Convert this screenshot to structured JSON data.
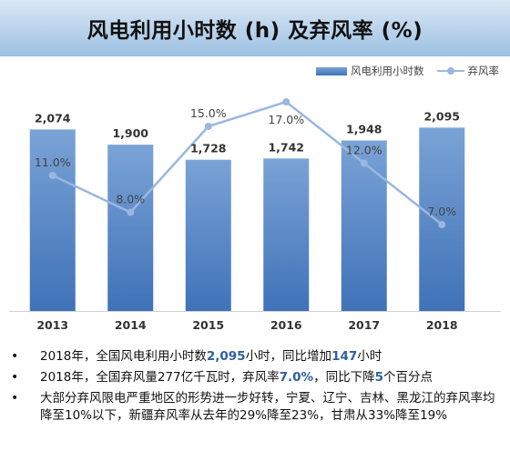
{
  "title": "风电利用小时数 (h) 及弃风率 (%)",
  "legend": {
    "hours_label": "风电利用小时数",
    "rate_label": "弃风率"
  },
  "chart_data": {
    "type": "bar",
    "categories": [
      "2013",
      "2014",
      "2015",
      "2016",
      "2017",
      "2018"
    ],
    "series": [
      {
        "name": "风电利用小时数",
        "type": "bar",
        "values": [
          2074,
          1900,
          1728,
          1742,
          1948,
          2095
        ],
        "labels": [
          "2,074",
          "1,900",
          "1,728",
          "1,742",
          "1,948",
          "2,095"
        ],
        "color": "#4a7fc1"
      },
      {
        "name": "弃风率",
        "type": "line",
        "values": [
          11.0,
          8.0,
          15.0,
          17.0,
          12.0,
          7.0
        ],
        "labels": [
          "11.0%",
          "8.0%",
          "15.0%",
          "17.0%",
          "12.0%",
          "7.0%"
        ],
        "color": "#9bb7df"
      }
    ],
    "bar_ylim": [
      0,
      2400
    ],
    "line_ylim": [
      0,
      20
    ],
    "grid": false,
    "legend_position": "top-right"
  },
  "notes": [
    [
      {
        "t": "2018年，全国风电利用小时数",
        "h": false
      },
      {
        "t": "2,095",
        "h": true
      },
      {
        "t": "小时，同比增加",
        "h": false
      },
      {
        "t": "147",
        "h": true
      },
      {
        "t": "小时",
        "h": false
      }
    ],
    [
      {
        "t": "2018年，全国弃风量277亿千瓦时，弃风率",
        "h": false
      },
      {
        "t": "7.0%",
        "h": true
      },
      {
        "t": "，同比下降",
        "h": false
      },
      {
        "t": "5",
        "h": true
      },
      {
        "t": "个百分点",
        "h": false
      }
    ],
    [
      {
        "t": "大部分弃风限电严重地区的形势进一步好转，宁夏、辽宁、吉林、黑龙江的弃风率均降至10%以下，新疆弃风率从去年的29%降至23%，甘肃从33%降至19%",
        "h": false
      }
    ]
  ],
  "colors": {
    "bar_top": "#7aa3d6",
    "bar_bottom": "#3f72b8",
    "line": "#9bb7df",
    "highlight": "#2f5f9e"
  }
}
